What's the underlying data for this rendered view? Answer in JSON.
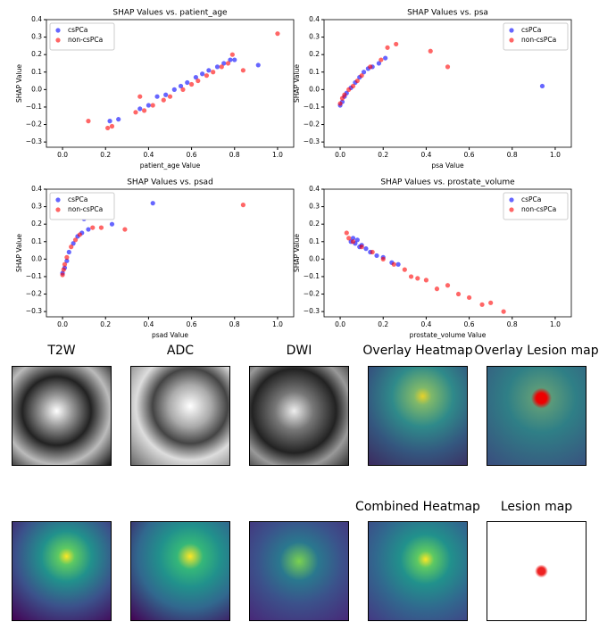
{
  "chart_data": [
    {
      "type": "scatter",
      "title": "SHAP Values vs. patient_age",
      "x_label": "patient_age Value",
      "y_label": "SHAP Value",
      "legend": "upper left",
      "xlim": [
        -0.075,
        1.075
      ],
      "ylim": [
        -0.33,
        0.4
      ],
      "xticks": [
        {
          "value": 0,
          "label": "0.0"
        },
        0.2,
        0.4,
        0.6,
        0.8,
        {
          "value": 1,
          "label": "1.0"
        }
      ],
      "yticks": [
        {
          "value": -0.3,
          "label": "−0.3"
        },
        {
          "value": -0.2,
          "label": "−0.2"
        },
        {
          "value": -0.1,
          "label": "−0.1"
        },
        {
          "value": 0,
          "label": "0.0"
        },
        0.1,
        0.2,
        0.3,
        0.4
      ],
      "series": [
        {
          "name": "csPCa",
          "color": "#0000ff",
          "x": [
            0.22,
            0.26,
            0.36,
            0.4,
            0.44,
            0.48,
            0.52,
            0.55,
            0.58,
            0.62,
            0.65,
            0.68,
            0.72,
            0.75,
            0.78,
            0.8,
            0.91
          ],
          "values": [
            -0.18,
            -0.17,
            -0.11,
            -0.09,
            -0.04,
            -0.03,
            0.0,
            0.02,
            0.04,
            0.07,
            0.09,
            0.11,
            0.13,
            0.15,
            0.17,
            0.17,
            0.14
          ]
        },
        {
          "name": "non-csPCa",
          "color": "#ff0000",
          "x": [
            0.12,
            0.21,
            0.23,
            0.34,
            0.36,
            0.38,
            0.42,
            0.47,
            0.5,
            0.56,
            0.6,
            0.63,
            0.67,
            0.7,
            0.74,
            0.77,
            0.79,
            0.84,
            1.0
          ],
          "values": [
            -0.18,
            -0.22,
            -0.21,
            -0.13,
            -0.04,
            -0.12,
            -0.09,
            -0.06,
            -0.04,
            0.0,
            0.03,
            0.05,
            0.08,
            0.1,
            0.13,
            0.15,
            0.2,
            0.11,
            0.32
          ]
        }
      ]
    },
    {
      "type": "scatter",
      "title": "SHAP Values vs. psa",
      "x_label": "psa Value",
      "y_label": "SHAP Value",
      "legend": "upper right",
      "xlim": [
        -0.075,
        1.075
      ],
      "ylim": [
        -0.33,
        0.4
      ],
      "xticks": [
        {
          "value": 0,
          "label": "0.0"
        },
        0.2,
        0.4,
        0.6,
        0.8,
        {
          "value": 1,
          "label": "1.0"
        }
      ],
      "yticks": [
        {
          "value": -0.3,
          "label": "−0.3"
        },
        {
          "value": -0.2,
          "label": "−0.2"
        },
        {
          "value": -0.1,
          "label": "−0.1"
        },
        {
          "value": 0,
          "label": "0.0"
        },
        0.1,
        0.2,
        0.3,
        0.4
      ],
      "series": [
        {
          "name": "csPCa",
          "color": "#0000ff",
          "x": [
            0.0,
            0.01,
            0.02,
            0.03,
            0.05,
            0.07,
            0.09,
            0.11,
            0.13,
            0.15,
            0.18,
            0.21,
            0.94
          ],
          "values": [
            -0.09,
            -0.07,
            -0.04,
            -0.02,
            0.01,
            0.04,
            0.07,
            0.1,
            0.12,
            0.13,
            0.15,
            0.18,
            0.02
          ]
        },
        {
          "name": "non-csPCa",
          "color": "#ff0000",
          "x": [
            0.0,
            0.01,
            0.02,
            0.04,
            0.06,
            0.08,
            0.1,
            0.14,
            0.19,
            0.22,
            0.26,
            0.42,
            0.5
          ],
          "values": [
            -0.08,
            -0.05,
            -0.03,
            0.0,
            0.02,
            0.05,
            0.08,
            0.13,
            0.17,
            0.24,
            0.26,
            0.22,
            0.13
          ]
        }
      ]
    },
    {
      "type": "scatter",
      "title": "SHAP Values vs. psad",
      "x_label": "psad Value",
      "y_label": "SHAP Value",
      "legend": "upper left",
      "xlim": [
        -0.075,
        1.075
      ],
      "ylim": [
        -0.33,
        0.4
      ],
      "xticks": [
        {
          "value": 0,
          "label": "0.0"
        },
        0.2,
        0.4,
        0.6,
        0.8,
        {
          "value": 1,
          "label": "1.0"
        }
      ],
      "yticks": [
        {
          "value": -0.3,
          "label": "−0.3"
        },
        {
          "value": -0.2,
          "label": "−0.2"
        },
        {
          "value": -0.1,
          "label": "−0.1"
        },
        {
          "value": 0,
          "label": "0.0"
        },
        0.1,
        0.2,
        0.3,
        0.4
      ],
      "series": [
        {
          "name": "csPCa",
          "color": "#0000ff",
          "x": [
            0.0,
            0.01,
            0.02,
            0.03,
            0.05,
            0.07,
            0.09,
            0.1,
            0.12,
            0.23,
            0.42
          ],
          "values": [
            -0.08,
            -0.05,
            -0.01,
            0.04,
            0.09,
            0.13,
            0.15,
            0.23,
            0.17,
            0.2,
            0.32
          ]
        },
        {
          "name": "non-csPCa",
          "color": "#ff0000",
          "x": [
            0.0,
            0.005,
            0.01,
            0.02,
            0.04,
            0.06,
            0.08,
            0.14,
            0.18,
            0.29,
            0.84
          ],
          "values": [
            -0.09,
            -0.06,
            -0.03,
            0.01,
            0.07,
            0.11,
            0.14,
            0.18,
            0.18,
            0.17,
            0.31
          ]
        }
      ]
    },
    {
      "type": "scatter",
      "title": "SHAP Values vs. prostate_volume",
      "x_label": "prostate_volume Value",
      "y_label": "SHAP Value",
      "legend": "upper right",
      "xlim": [
        -0.075,
        1.075
      ],
      "ylim": [
        -0.33,
        0.4
      ],
      "xticks": [
        {
          "value": 0,
          "label": "0.0"
        },
        0.2,
        0.4,
        0.6,
        0.8,
        {
          "value": 1,
          "label": "1.0"
        }
      ],
      "yticks": [
        {
          "value": -0.3,
          "label": "−0.3"
        },
        {
          "value": -0.2,
          "label": "−0.2"
        },
        {
          "value": -0.1,
          "label": "−0.1"
        },
        {
          "value": 0,
          "label": "0.0"
        },
        0.1,
        0.2,
        0.3,
        0.4
      ],
      "series": [
        {
          "name": "csPCa",
          "color": "#0000ff",
          "x": [
            0.05,
            0.06,
            0.07,
            0.08,
            0.09,
            0.1,
            0.12,
            0.14,
            0.17,
            0.2,
            0.24,
            0.27
          ],
          "values": [
            0.1,
            0.12,
            0.09,
            0.11,
            0.07,
            0.08,
            0.06,
            0.04,
            0.02,
            0.01,
            -0.02,
            -0.03
          ]
        },
        {
          "name": "non-csPCa",
          "color": "#ff0000",
          "x": [
            0.03,
            0.04,
            0.06,
            0.1,
            0.15,
            0.2,
            0.25,
            0.3,
            0.33,
            0.36,
            0.4,
            0.45,
            0.5,
            0.55,
            0.6,
            0.66,
            0.7,
            0.76
          ],
          "values": [
            0.15,
            0.12,
            0.1,
            0.07,
            0.04,
            0.0,
            -0.03,
            -0.06,
            -0.1,
            -0.11,
            -0.12,
            -0.17,
            -0.15,
            -0.2,
            -0.22,
            -0.26,
            -0.25,
            -0.3
          ]
        }
      ]
    }
  ],
  "image_titles": [
    "T2W",
    "ADC",
    "DWI",
    "Overlay Heatmap",
    "Overlay Lesion map",
    "Combined Heatmap",
    "Lesion map"
  ]
}
